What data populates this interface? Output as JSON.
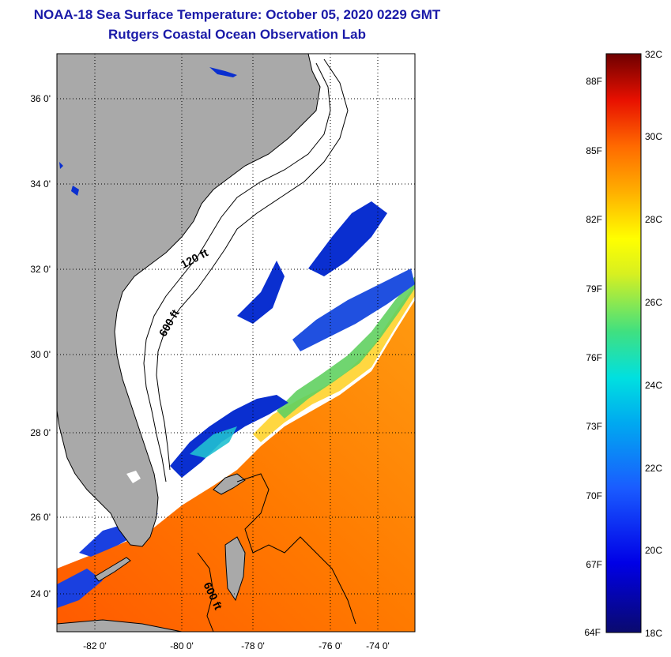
{
  "header": {
    "title": "NOAA-18 Sea Surface Temperature:  October 05, 2020 0229 GMT",
    "subtitle": "Rutgers Coastal Ocean Observation Lab"
  },
  "map": {
    "lat_labels": [
      "36 0'",
      "34 0'",
      "32 0'",
      "30 0'",
      "28 0'",
      "26 0'",
      "24 0'"
    ],
    "lon_labels": [
      "-82 0'",
      "-80 0'",
      "-78 0'",
      "-76 0'",
      "-74 0'"
    ],
    "contour_labels": [
      "120 ft",
      "600 ft",
      "600 ft"
    ],
    "colors": {
      "land": "#a9a9a9",
      "no_data": "#ffffff"
    }
  },
  "colorbar": {
    "f_labels": [
      "88F",
      "85F",
      "82F",
      "79F",
      "76F",
      "73F",
      "70F",
      "67F",
      "64F"
    ],
    "c_labels": [
      "32C",
      "30C",
      "28C",
      "26C",
      "24C",
      "22C",
      "20C",
      "18C"
    ]
  }
}
